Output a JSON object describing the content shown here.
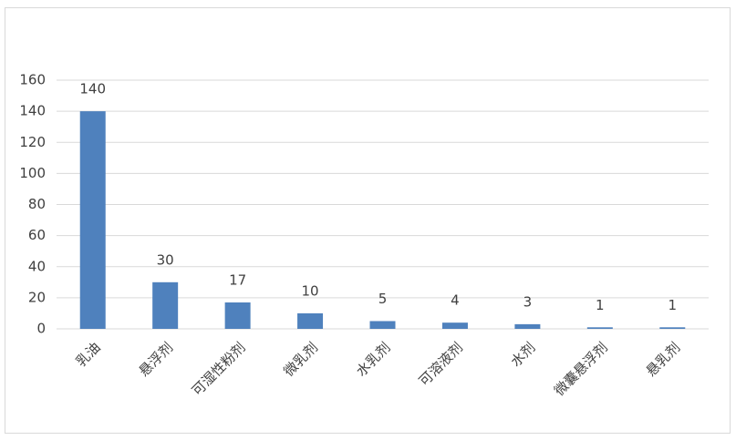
{
  "chart_data": {
    "type": "bar",
    "categories": [
      "乳油",
      "悬浮剂",
      "可湿性粉剂",
      "微乳剂",
      "水乳剂",
      "可溶液剂",
      "水剂",
      "微囊悬浮剂",
      "悬乳剂"
    ],
    "values": [
      140,
      30,
      17,
      10,
      5,
      4,
      3,
      1,
      1
    ],
    "color": "#4f81bd",
    "ylim": [
      0,
      160
    ],
    "yticks": [
      0,
      20,
      40,
      60,
      80,
      100,
      120,
      140,
      160
    ],
    "grid": true
  }
}
